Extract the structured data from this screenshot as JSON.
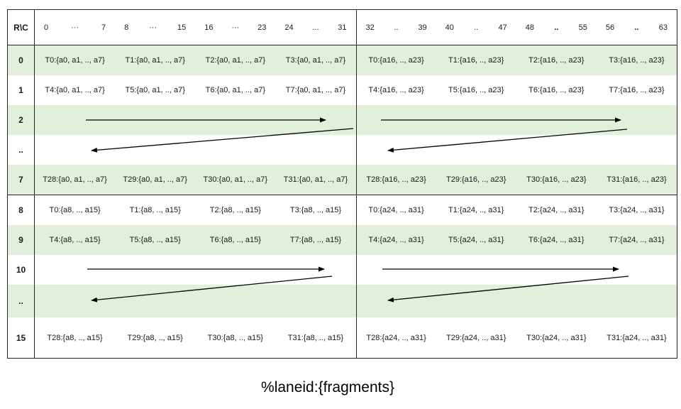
{
  "caption": "%laneid:{fragments}",
  "table": {
    "corner_label": "R\\C",
    "column_groups": [
      {
        "start": "0",
        "sep": "···",
        "end": "7"
      },
      {
        "start": "8",
        "sep": "···",
        "end": "15"
      },
      {
        "start": "16",
        "sep": "···",
        "end": "23"
      },
      {
        "start": "24",
        "sep": "...",
        "end": "31"
      },
      {
        "start": "32",
        "sep": "..",
        "end": "39"
      },
      {
        "start": "40",
        "sep": "..",
        "end": "47"
      },
      {
        "start": "48",
        "sep": "..",
        "end": "55"
      },
      {
        "start": "56",
        "sep": "..",
        "end": "63"
      }
    ],
    "rows": [
      {
        "label": "0",
        "kind": "data",
        "cells": [
          "T0:{a0, a1, .., a7}",
          "T1:{a0, a1, .., a7}",
          "T2:{a0, a1, .., a7}",
          "T3:{a0, a1, .., a7}",
          "T0:{a16, .., a23}",
          "T1:{a16, .., a23}",
          "T2:{a16, .., a23}",
          "T3:{a16, .., a23}"
        ]
      },
      {
        "label": "1",
        "kind": "data",
        "cells": [
          "T4:{a0, a1, .., a7}",
          "T5:{a0, a1, .., a7}",
          "T6:{a0, a1, .., a7}",
          "T7:{a0, a1, .., a7}",
          "T4:{a16, .., a23}",
          "T5:{a16, .., a23}",
          "T6:{a16, .., a23}",
          "T7:{a16, .., a23}"
        ]
      },
      {
        "label": "2",
        "kind": "arrow-start",
        "cells": []
      },
      {
        "label": "..",
        "kind": "arrow-wrap",
        "cells": []
      },
      {
        "label": "7",
        "kind": "data",
        "cells": [
          "T28:{a0, a1, .., a7}",
          "T29:{a0, a1, .., a7}",
          "T30:{a0, a1, .., a7}",
          "T31:{a0, a1, .., a7}",
          "T28:{a16, .., a23}",
          "T29:{a16, .., a23}",
          "T30:{a16, .., a23}",
          "T31:{a16, .., a23}"
        ]
      },
      {
        "label": "8",
        "kind": "data",
        "cells": [
          "T0:{a8, .., a15}",
          "T1:{a8, .., a15}",
          "T2:{a8, .., a15}",
          "T3:{a8, .., a15}",
          "T0:{a24, .., a31}",
          "T1:{a24, .., a31}",
          "T2:{a24, .., a31}",
          "T3:{a24, .., a31}"
        ]
      },
      {
        "label": "9",
        "kind": "data",
        "cells": [
          "T4:{a8, .., a15}",
          "T5:{a8, .., a15}",
          "T6:{a8, .., a15}",
          "T7:{a8, .., a15}",
          "T4:{a24, .., a31}",
          "T5:{a24, .., a31}",
          "T6:{a24, .., a31}",
          "T7:{a24, .., a31}"
        ]
      },
      {
        "label": "10",
        "kind": "arrow-start",
        "cells": []
      },
      {
        "label": "..",
        "kind": "arrow-wrap",
        "cells": []
      },
      {
        "label": "15",
        "kind": "data",
        "cells": [
          "T28:{a8, .., a15}",
          "T29:{a8, .., a15}",
          "T30:{a8, .., a15}",
          "T31:{a8, .., a15}",
          "T28:{a24, .., a31}",
          "T29:{a24, .., a31}",
          "T30:{a24, .., a31}",
          "T31:{a24, .., a31}"
        ]
      }
    ],
    "arrows": [
      {
        "row": "2",
        "half": "left",
        "type": "right-then-wrap-left"
      },
      {
        "row": "2",
        "half": "right",
        "type": "right-then-wrap-left"
      },
      {
        "row": "10",
        "half": "left",
        "type": "right-then-wrap-left"
      },
      {
        "row": "10",
        "half": "right",
        "type": "right-then-wrap-left"
      }
    ],
    "colors": {
      "stripe_green": "#e2efda",
      "border": "#262626",
      "arrow": "#000000",
      "text": "#1a1a1a"
    }
  }
}
